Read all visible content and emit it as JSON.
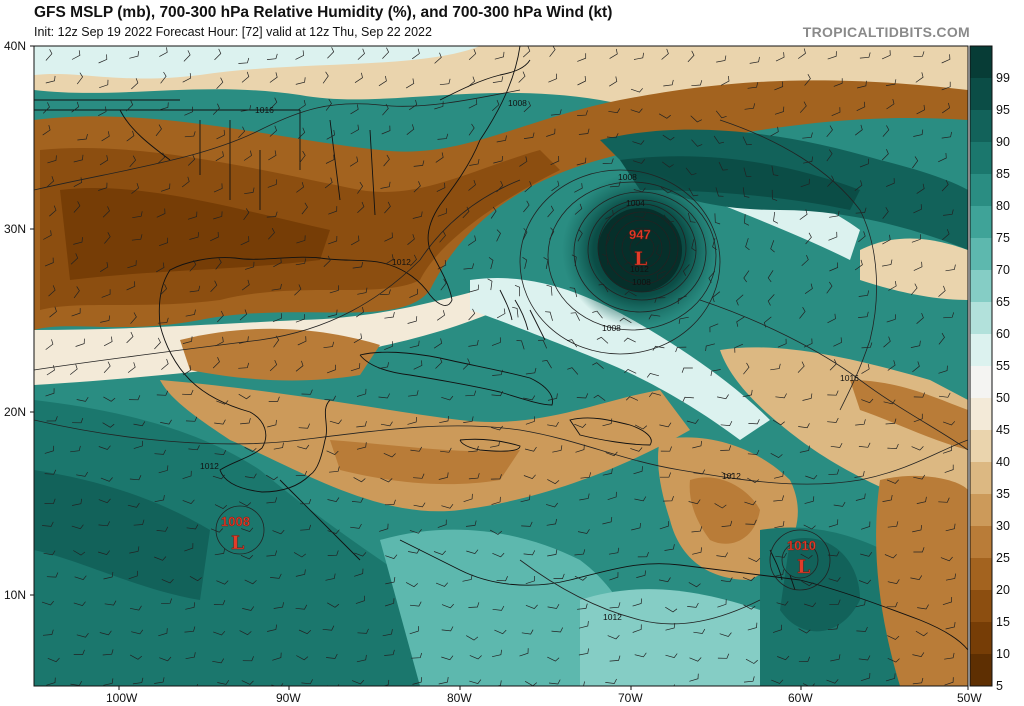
{
  "header": {
    "title": "GFS MSLP (mb), 700-300 hPa Relative Humidity (%), and 700-300 hPa Wind (kt)",
    "subtitle": "Init: 12z Sep 19 2022   Forecast Hour: [72]   valid at 12z Thu, Sep 22 2022",
    "brand": "TROPICALTIDBITS.COM"
  },
  "axes": {
    "lat_labels": [
      "40N",
      "30N",
      "20N",
      "10N"
    ],
    "lon_labels": [
      "100W",
      "90W",
      "80W",
      "70W",
      "60W",
      "50W"
    ]
  },
  "colorbar": {
    "labels": [
      "99",
      "95",
      "90",
      "85",
      "80",
      "75",
      "70",
      "65",
      "60",
      "55",
      "50",
      "45",
      "40",
      "35",
      "30",
      "25",
      "20",
      "15",
      "10",
      "5"
    ],
    "colors": [
      "#073c36",
      "#0b4d46",
      "#12625a",
      "#1b776d",
      "#2a8d82",
      "#3fa398",
      "#5db8ae",
      "#85cdc5",
      "#b2e1db",
      "#dcf2ef",
      "#f4f4f2",
      "#f3ead8",
      "#ead4ad",
      "#dcb882",
      "#cc9a5a",
      "#b97c38",
      "#a3631f",
      "#8c4e10",
      "#763d06",
      "#5e2f02"
    ]
  },
  "isobar_labels": [
    "1016",
    "1008",
    "1008",
    "1004",
    "1012",
    "1008",
    "1016",
    "1012",
    "1012",
    "1012",
    "1008",
    "1012"
  ],
  "lows": [
    {
      "pressure": "947",
      "symbol": "L",
      "lat": 28.6,
      "lon": -69.3
    },
    {
      "pressure": "1008",
      "symbol": "L",
      "lat": 13.0,
      "lon": -92.9
    },
    {
      "pressure": "1010",
      "symbol": "L",
      "lat": 11.8,
      "lon": -60.0
    }
  ]
}
